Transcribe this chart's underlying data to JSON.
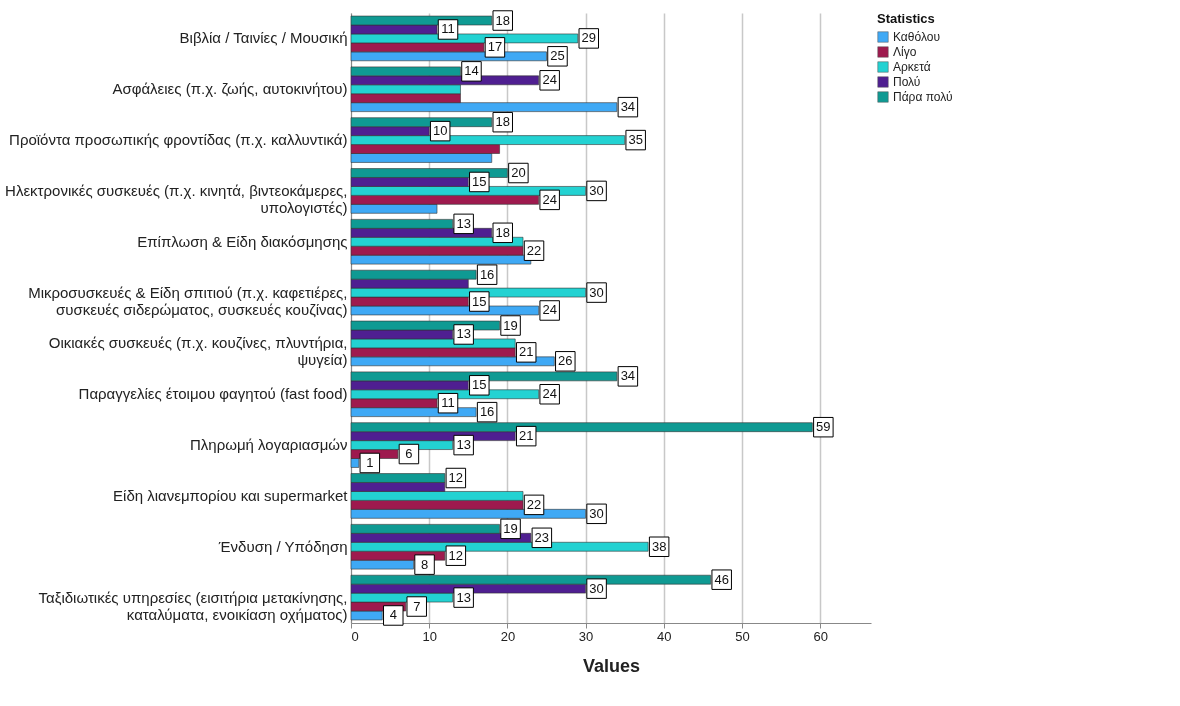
{
  "chart_data": {
    "type": "bar",
    "orientation": "horizontal",
    "xlabel": "Values",
    "legend_title": "Statistics",
    "legend": "top right",
    "grid": "x",
    "xlim": [
      0,
      66.5
    ],
    "xticks": [
      0,
      10,
      20,
      30,
      40,
      50,
      60
    ],
    "categories": [
      "Βιβλία / Ταινίες / Μουσική",
      "Ασφάλειες (π.χ. ζωής, αυτοκινήτου)",
      "Προϊόντα προσωπικής φροντίδας (π.χ. καλλυντικά)",
      "Ηλεκτρονικές συσκευές (π.χ. κινητά, βιντεοκάμερες, υπολογιστές)",
      "Επίπλωση & Είδη διακόσμησης",
      "Μικροσυσκευές & Είδη σπιτιού (π.χ. καφετιέρες, συσκευές σιδερώματος, συσκευές κουζίνας)",
      "Οικιακές συσκευές (π.χ. κουζίνες, πλυντήρια, ψυγεία)",
      "Παραγγελίες έτοιμου φαγητού (fast food)",
      "Πληρωμή λογαριασμών",
      "Είδη λιανεμπορίου και supermarket",
      "Ένδυση / Υπόδηση",
      "Ταξιδιωτικές υπηρεσίες (εισιτήρια μετακίνησης, καταλύματα, ενοικίαση οχήματος)"
    ],
    "series": [
      {
        "name": "Καθόλου",
        "color": "#3fa9f5",
        "values": [
          25,
          34,
          18,
          11,
          23,
          24,
          26,
          16,
          1,
          30,
          8,
          4
        ],
        "value_labels": [
          "25",
          "34",
          null,
          null,
          null,
          "24",
          "26",
          "16",
          "1",
          "30",
          "8",
          "4"
        ]
      },
      {
        "name": "Λίγο",
        "color": "#9e1a4e",
        "values": [
          17,
          14,
          19,
          24,
          22,
          15,
          21,
          11,
          6,
          22,
          12,
          7
        ],
        "value_labels": [
          "17",
          null,
          null,
          "24",
          "22",
          "15",
          "21",
          "11",
          "6",
          "22",
          "12",
          "7"
        ]
      },
      {
        "name": "Αρκετά",
        "color": "#23d2d2",
        "values": [
          29,
          14,
          35,
          30,
          22,
          30,
          21,
          24,
          13,
          22,
          38,
          13
        ],
        "value_labels": [
          "29",
          null,
          "35",
          "30",
          null,
          "30",
          null,
          "24",
          "13",
          null,
          "38",
          "13"
        ]
      },
      {
        "name": "Πολύ",
        "color": "#4f1f91",
        "values": [
          11,
          24,
          10,
          15,
          18,
          15,
          13,
          15,
          21,
          12,
          23,
          30
        ],
        "value_labels": [
          "11",
          "24",
          "10",
          "15",
          "18",
          null,
          "13",
          "15",
          "21",
          null,
          "23",
          "30"
        ]
      },
      {
        "name": "Πάρα πολύ",
        "color": "#0f9a93",
        "values": [
          18,
          14,
          18,
          20,
          13,
          16,
          19,
          34,
          59,
          12,
          19,
          46
        ],
        "value_labels": [
          "18",
          "14",
          "18",
          "20",
          "13",
          "16",
          "19",
          "34",
          "59",
          "12",
          "19",
          "46"
        ]
      }
    ]
  }
}
